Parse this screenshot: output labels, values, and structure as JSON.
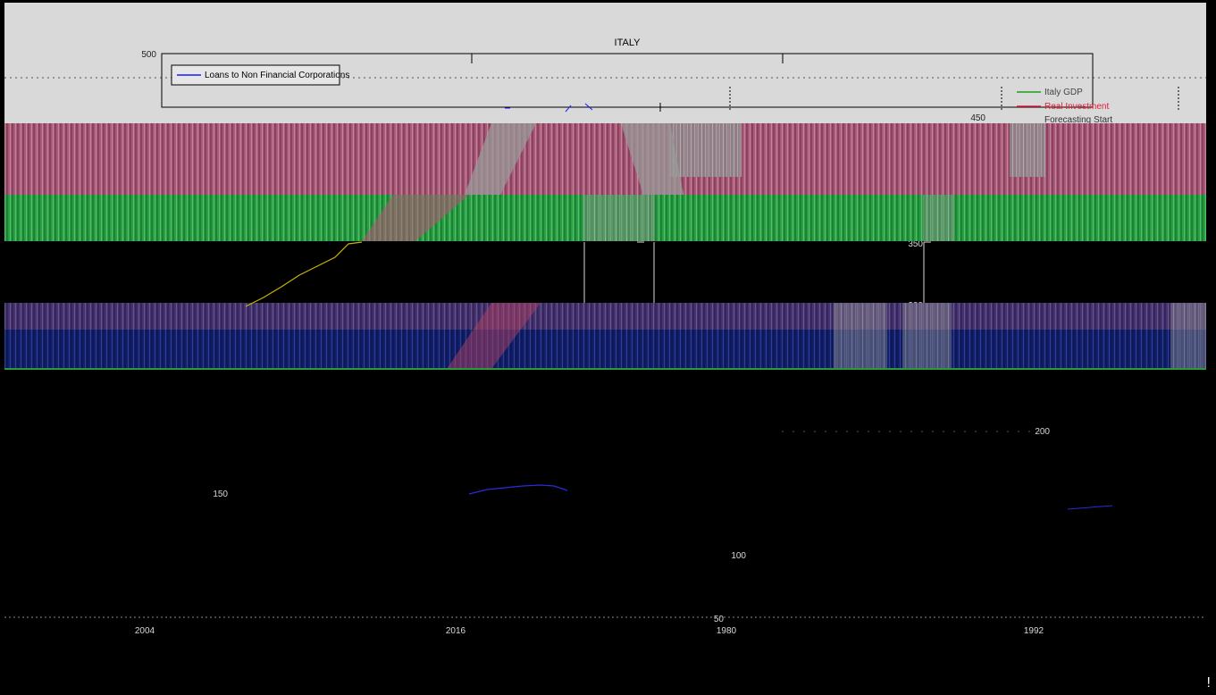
{
  "chart_data": {
    "type": "line",
    "title": "ITALY",
    "x_ticks": [
      "2004",
      "2016",
      "1980",
      "1992"
    ],
    "y_ticks": [
      "500",
      "450",
      "400",
      "350",
      "300",
      "200",
      "150",
      "100",
      "50"
    ],
    "legend_left": [
      {
        "name": "Loans to Non Financial Corporations",
        "color": "#1a1aff"
      }
    ],
    "legend_right": [
      {
        "name": "Italy GDP",
        "color": "#1e9e1e"
      },
      {
        "name": "Real Investment",
        "color": "#e0203a"
      },
      {
        "name": "Forecasting Start",
        "color": "#000000"
      }
    ],
    "series": [
      {
        "name": "Loans to Non Financial Corporations",
        "color": "#2b2bd9",
        "points": [
          [
            520,
            550
          ],
          [
            540,
            545
          ],
          [
            560,
            543
          ],
          [
            580,
            541
          ],
          [
            600,
            540
          ],
          [
            615,
            541
          ],
          [
            630,
            546
          ]
        ]
      },
      {
        "name": "Yellow series",
        "color": "#c8b400",
        "points": [
          [
            270,
            340
          ],
          [
            290,
            330
          ],
          [
            310,
            318
          ],
          [
            330,
            305
          ],
          [
            350,
            295
          ],
          [
            370,
            285
          ],
          [
            385,
            270
          ],
          [
            400,
            268
          ]
        ]
      }
    ],
    "colors": {
      "gdp": "#1e9e1e",
      "investment": "#e0203a",
      "loans": "#1a1aff",
      "gray_band": "#c8c8c8",
      "pink_band": "#b0607a",
      "green_band": "#2ea84a",
      "blue_band": "#1a2a8a"
    }
  },
  "corner_mark": "!"
}
